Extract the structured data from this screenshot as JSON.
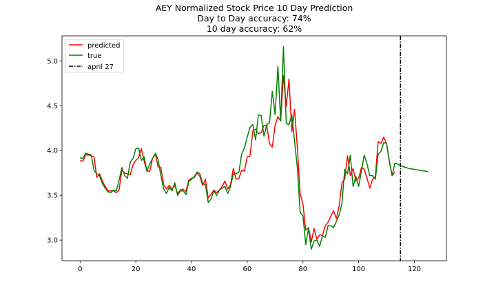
{
  "chart_data": {
    "type": "line",
    "title": [
      "AEY Normalized Stock Price 10 Day Prediction",
      "Day to Day accuracy: 74%",
      "10 day accuracy: 62%"
    ],
    "xlabel": "",
    "ylabel": "",
    "xlim": [
      -6.5,
      131.5
    ],
    "ylim": [
      2.77,
      5.28
    ],
    "xticks": [
      0,
      20,
      40,
      60,
      80,
      100,
      120
    ],
    "yticks": [
      3.0,
      3.5,
      4.0,
      4.5,
      5.0
    ],
    "grid": false,
    "legend_position": "upper-left",
    "series": [
      {
        "name": "predicted",
        "color": "#ff0000",
        "x_start": 0,
        "values": [
          3.89,
          3.88,
          3.95,
          3.95,
          3.94,
          3.93,
          3.7,
          3.74,
          3.66,
          3.6,
          3.55,
          3.55,
          3.55,
          3.53,
          3.56,
          3.78,
          3.75,
          3.74,
          3.73,
          3.84,
          3.89,
          3.92,
          4.02,
          3.88,
          3.77,
          3.77,
          3.91,
          3.96,
          3.82,
          3.81,
          3.62,
          3.57,
          3.61,
          3.57,
          3.61,
          3.52,
          3.56,
          3.57,
          3.54,
          3.67,
          3.69,
          3.7,
          3.75,
          3.71,
          3.61,
          3.68,
          3.47,
          3.51,
          3.56,
          3.53,
          3.56,
          3.6,
          3.66,
          3.57,
          3.62,
          3.8,
          3.68,
          3.69,
          3.78,
          3.77,
          3.93,
          3.94,
          4.22,
          4.24,
          4.19,
          4.2,
          4.28,
          4.28,
          4.08,
          4.04,
          4.28,
          4.38,
          4.33,
          4.84,
          4.49,
          4.8,
          4.21,
          4.46,
          4.03,
          3.52,
          3.4,
          3.11,
          3.14,
          2.98,
          3.13,
          3.01,
          3.06,
          3.05,
          3.16,
          3.2,
          3.27,
          3.33,
          3.24,
          3.38,
          3.64,
          3.68,
          3.94,
          3.72,
          3.8,
          3.66,
          3.69,
          3.81,
          3.79,
          3.69,
          3.58,
          3.68,
          3.71,
          4.1,
          4.08,
          4.15,
          4.08,
          3.88,
          3.72,
          3.76
        ]
      },
      {
        "name": "true",
        "color": "#008000",
        "x_start": 0,
        "values": [
          3.92,
          3.91,
          3.97,
          3.96,
          3.95,
          3.78,
          3.74,
          3.72,
          3.63,
          3.58,
          3.54,
          3.53,
          3.56,
          3.55,
          3.67,
          3.81,
          3.72,
          3.69,
          3.87,
          3.91,
          4.02,
          4.03,
          3.89,
          3.93,
          3.77,
          3.85,
          3.91,
          3.97,
          3.9,
          3.72,
          3.57,
          3.52,
          3.59,
          3.55,
          3.64,
          3.5,
          3.55,
          3.55,
          3.51,
          3.65,
          3.68,
          3.71,
          3.76,
          3.74,
          3.63,
          3.62,
          3.42,
          3.46,
          3.55,
          3.5,
          3.56,
          3.58,
          3.6,
          3.52,
          3.6,
          3.74,
          3.74,
          3.76,
          3.96,
          4.03,
          4.15,
          4.26,
          4.29,
          4.12,
          4.4,
          4.39,
          4.16,
          4.29,
          4.31,
          4.66,
          4.4,
          4.94,
          4.33,
          5.16,
          4.3,
          4.29,
          4.4,
          4.11,
          3.8,
          3.31,
          3.27,
          2.95,
          3.13,
          2.9,
          2.99,
          3.0,
          2.93,
          3.05,
          3.03,
          3.16,
          3.16,
          3.14,
          3.21,
          3.28,
          3.41,
          3.79,
          3.74,
          3.95,
          3.6,
          3.71,
          3.6,
          3.77,
          3.95,
          3.85,
          3.72,
          3.72,
          3.68,
          3.96,
          3.99,
          4.09,
          4.08,
          3.89,
          3.72,
          3.86,
          3.85,
          3.83,
          3.82,
          3.81,
          3.8,
          3.795,
          3.79,
          3.785,
          3.78,
          3.775,
          3.77,
          3.765
        ]
      }
    ],
    "reference_line": {
      "label": "april 27",
      "x": 115,
      "color": "#000000",
      "style": "dash-dot"
    }
  }
}
